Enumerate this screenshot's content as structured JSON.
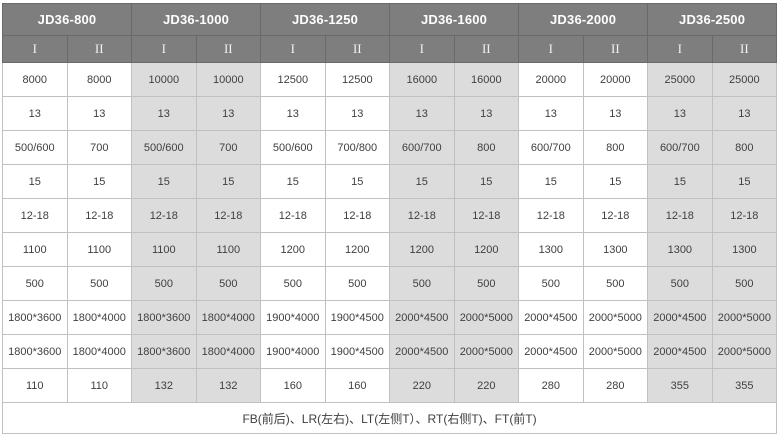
{
  "table": {
    "header": {
      "groups": [
        "JD36-800",
        "JD36-1000",
        "JD36-1250",
        "JD36-1600",
        "JD36-2000",
        "JD36-2500"
      ],
      "sub_columns": [
        "I",
        "II"
      ]
    },
    "rows": [
      [
        "8000",
        "8000",
        "10000",
        "10000",
        "12500",
        "12500",
        "16000",
        "16000",
        "20000",
        "20000",
        "25000",
        "25000"
      ],
      [
        "13",
        "13",
        "13",
        "13",
        "13",
        "13",
        "13",
        "13",
        "13",
        "13",
        "13",
        "13"
      ],
      [
        "500/600",
        "700",
        "500/600",
        "700",
        "500/600",
        "700/800",
        "600/700",
        "800",
        "600/700",
        "800",
        "600/700",
        "800"
      ],
      [
        "15",
        "15",
        "15",
        "15",
        "15",
        "15",
        "15",
        "15",
        "15",
        "15",
        "15",
        "15"
      ],
      [
        "12-18",
        "12-18",
        "12-18",
        "12-18",
        "12-18",
        "12-18",
        "12-18",
        "12-18",
        "12-18",
        "12-18",
        "12-18",
        "12-18"
      ],
      [
        "1100",
        "1100",
        "1100",
        "1100",
        "1200",
        "1200",
        "1200",
        "1200",
        "1300",
        "1300",
        "1300",
        "1300"
      ],
      [
        "500",
        "500",
        "500",
        "500",
        "500",
        "500",
        "500",
        "500",
        "500",
        "500",
        "500",
        "500"
      ],
      [
        "1800*3600",
        "1800*4000",
        "1800*3600",
        "1800*4000",
        "1900*4000",
        "1900*4500",
        "2000*4500",
        "2000*5000",
        "2000*4500",
        "2000*5000",
        "2000*4500",
        "2000*5000"
      ],
      [
        "1800*3600",
        "1800*4000",
        "1800*3600",
        "1800*4000",
        "1900*4000",
        "1900*4500",
        "2000*4500",
        "2000*5000",
        "2000*4500",
        "2000*5000",
        "2000*4500",
        "2000*5000"
      ],
      [
        "110",
        "110",
        "132",
        "132",
        "160",
        "160",
        "220",
        "220",
        "280",
        "280",
        "355",
        "355"
      ]
    ],
    "footer": {
      "note": "FB(前后)、LR(左右)、LT(左侧T）、RT(右侧T)、FT(前T)"
    },
    "colors": {
      "header_bg": "#7e7e7e",
      "header_text": "#ffffff",
      "alt_column_bg": "#dcdcdc",
      "body_text": "#3f3f3f",
      "border_light": "#c0c0c0",
      "border_dark": "#6a6a6a"
    }
  }
}
